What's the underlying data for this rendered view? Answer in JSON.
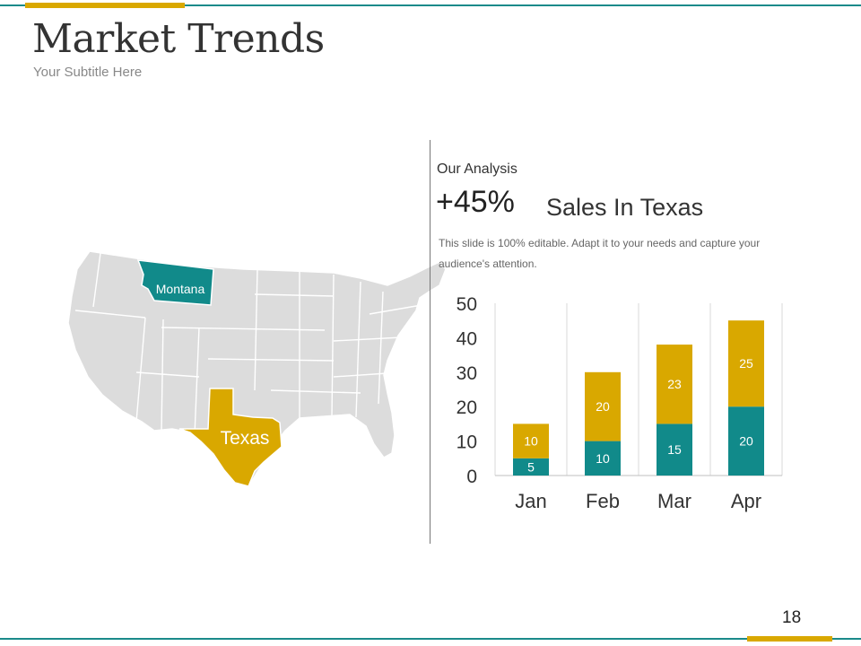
{
  "slide": {
    "title": "Market Trends",
    "subtitle": "Your Subtitle Here",
    "page_number": "18"
  },
  "map": {
    "highlight_1": {
      "label": "Montana",
      "color": "#118a8a"
    },
    "highlight_2": {
      "label": "Texas",
      "color": "#d9a800"
    },
    "base_color": "#dcdcdc"
  },
  "analysis": {
    "heading": "Our Analysis",
    "percent": "+45%",
    "label": "Sales In Texas",
    "description": "This slide is 100% editable. Adapt it to your needs and capture your audience's attention."
  },
  "colors": {
    "teal": "#118a8a",
    "gold": "#d9a800",
    "rule": "#1a8a8a"
  },
  "chart_data": {
    "type": "bar",
    "stacked": true,
    "categories": [
      "Jan",
      "Feb",
      "Mar",
      "Apr"
    ],
    "series": [
      {
        "values": [
          5,
          10,
          15,
          20
        ],
        "color": "#118a8a"
      },
      {
        "values": [
          10,
          20,
          23,
          25
        ],
        "color": "#d9a800"
      }
    ],
    "yticks": [
      0,
      10,
      20,
      30,
      40,
      50
    ],
    "ylim": [
      0,
      50
    ],
    "grid": "vertical",
    "data_labels": true
  }
}
